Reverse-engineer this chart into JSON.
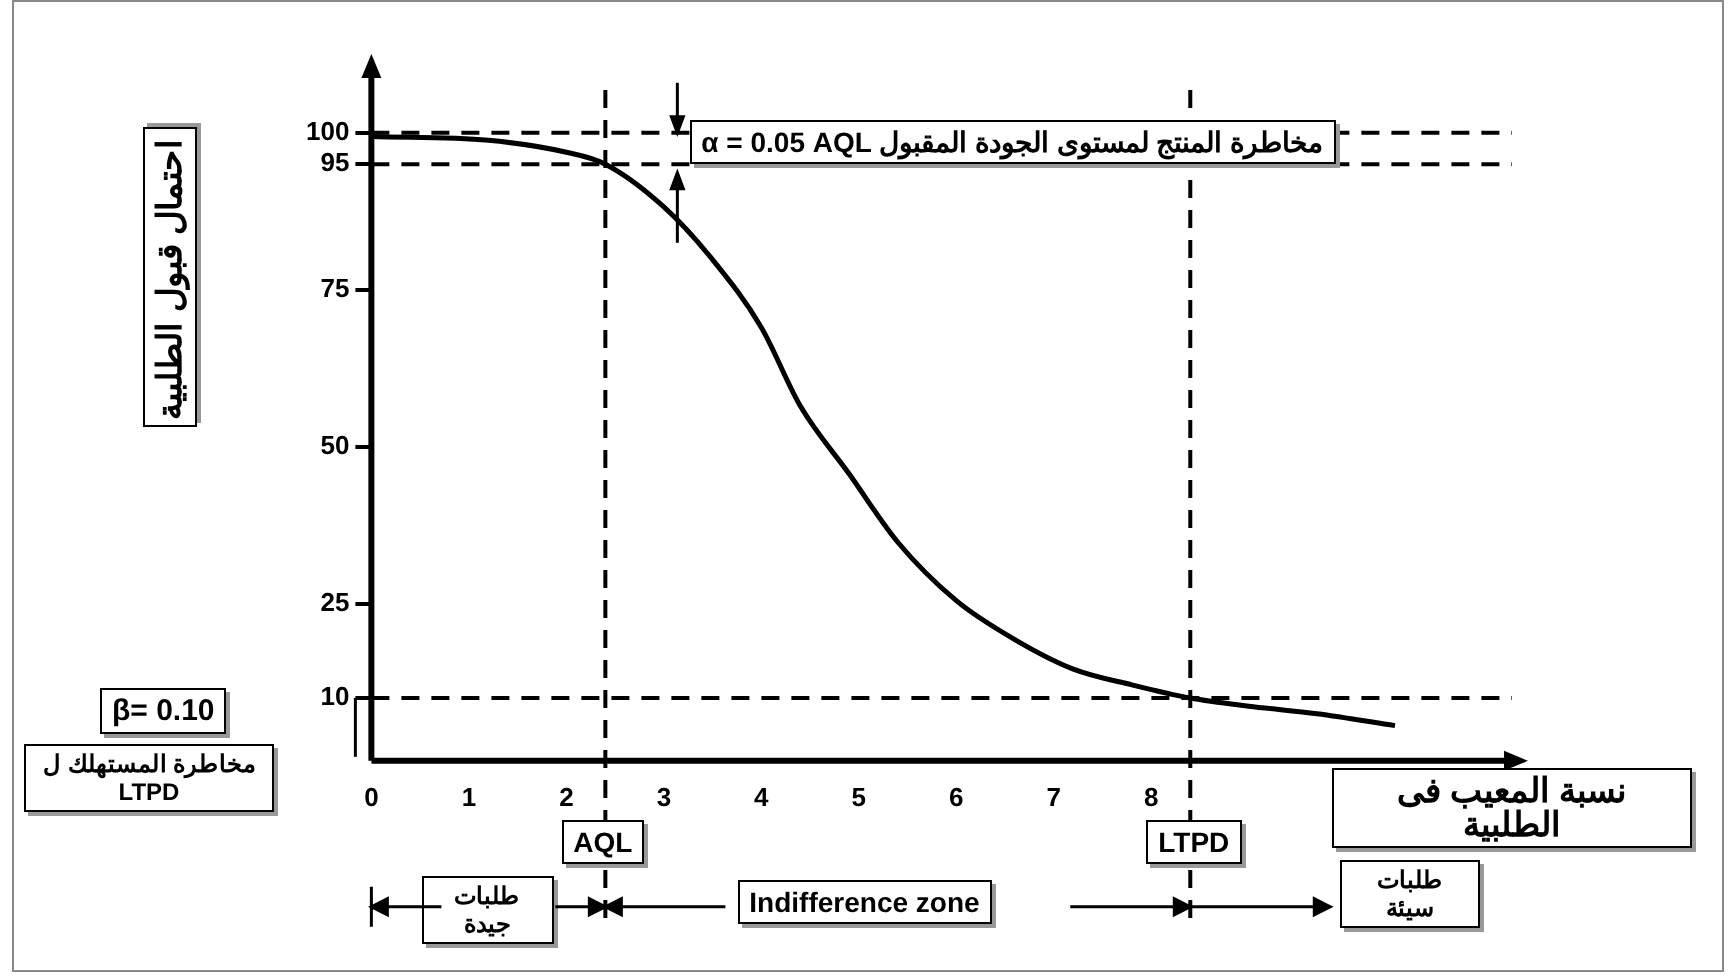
{
  "chart_data": {
    "type": "line",
    "xlabel": "نسبة المعيب فى الطلبية",
    "ylabel": "احتمال قبول الطلبية",
    "x": [
      0,
      1.2,
      2.0,
      2.4,
      3.0,
      3.5,
      4.0,
      4.4,
      4.9,
      5.4,
      6.0,
      6.6,
      7.2,
      7.8,
      8.4,
      9.0,
      9.7,
      10.5
    ],
    "series": [
      {
        "color": "#000000",
        "values": [
          99.4,
          98.8,
          96.9,
          95,
          88.2,
          79.8,
          69,
          56.5,
          45.7,
          34.8,
          25.5,
          19.3,
          14.6,
          12.1,
          10,
          8.7,
          7.5,
          5.6
        ]
      }
    ],
    "xlim": [
      0,
      11.7
    ],
    "xticks": [
      0,
      1,
      2,
      3,
      4,
      5,
      6,
      7,
      8
    ],
    "ylim": [
      0,
      110
    ],
    "yticks": [
      10,
      25,
      50,
      75,
      95,
      100
    ],
    "grid": false,
    "legend": false,
    "marker": "none",
    "line_style": "solid",
    "ref_lines": [
      {
        "axis": "y",
        "value": 100,
        "line_style": "dashed",
        "color": "#000000"
      },
      {
        "axis": "y",
        "value": 95,
        "line_style": "dashed",
        "color": "#000000"
      },
      {
        "axis": "y",
        "value": 10,
        "line_style": "dashed",
        "color": "#000000"
      },
      {
        "axis": "x",
        "value": 2.4,
        "label": "AQL",
        "line_style": "dashed",
        "color": "#000000"
      },
      {
        "axis": "x",
        "value": 8.4,
        "label": "LTPD",
        "line_style": "dashed",
        "color": "#000000"
      }
    ],
    "annotations": [
      "α = 0.05    AQL مخاطرة المنتج لمستوى الجودة المقبول",
      "β= 0.10",
      "مخاطرة المستهلك ل LTPD",
      "طلبات جيدة",
      "Indifference zone",
      "طلبات سيئة"
    ]
  }
}
